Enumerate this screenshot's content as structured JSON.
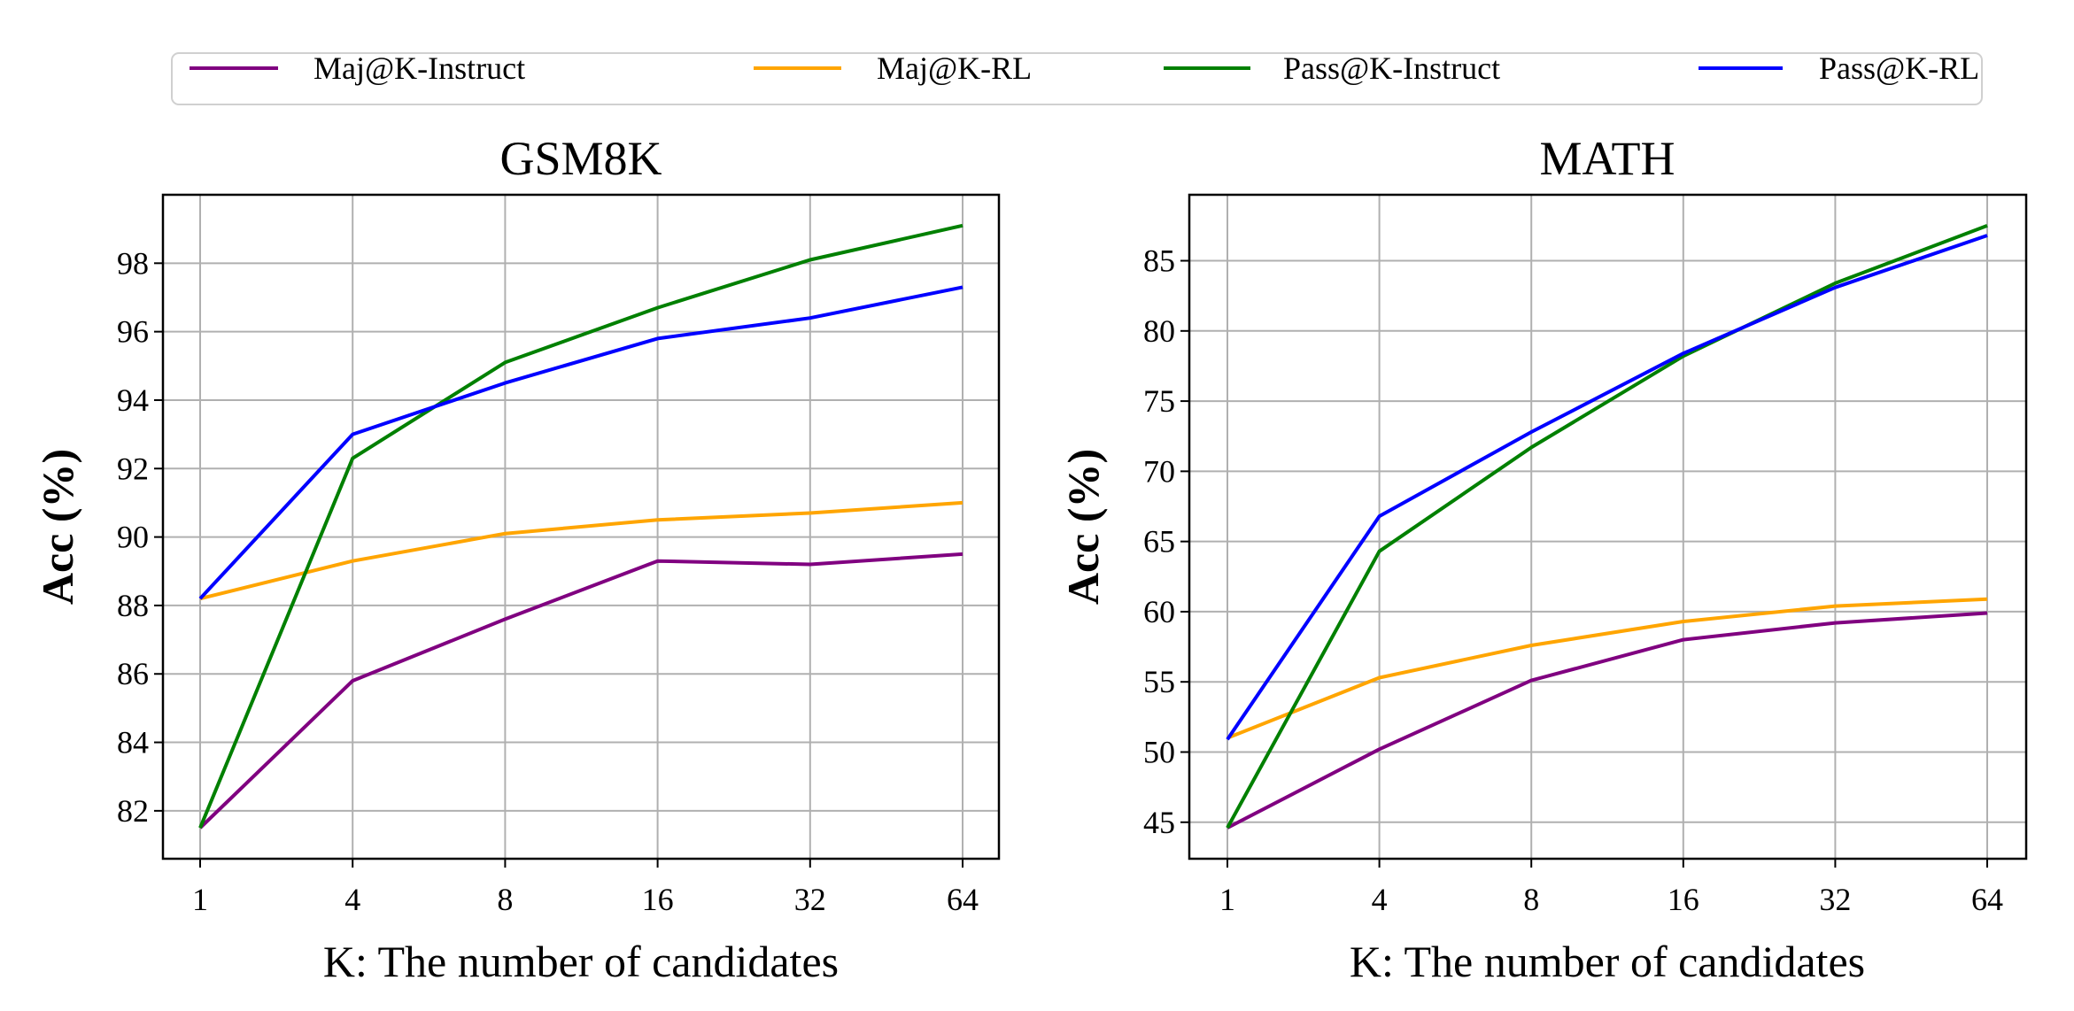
{
  "legend": {
    "placement": "top-center",
    "entries": [
      {
        "label": "Maj@K-Instruct",
        "color": "#800080"
      },
      {
        "label": "Maj@K-RL",
        "color": "#FFA500"
      },
      {
        "label": "Pass@K-Instruct",
        "color": "#008000"
      },
      {
        "label": "Pass@K-RL",
        "color": "#0000FF"
      }
    ]
  },
  "chart_data": [
    {
      "type": "line",
      "title": "GSM8K",
      "xlabel": "K: The number of candidates",
      "ylabel": "Acc (%)",
      "categories": [
        "1",
        "4",
        "8",
        "16",
        "32",
        "64"
      ],
      "yticks": [
        82,
        84,
        86,
        88,
        90,
        92,
        94,
        96,
        98
      ],
      "ylim": [
        80.6,
        100
      ],
      "grid": true,
      "series": [
        {
          "name": "Maj@K-Instruct",
          "color": "#800080",
          "values": [
            81.5,
            85.8,
            87.6,
            89.3,
            89.2,
            89.5
          ]
        },
        {
          "name": "Maj@K-RL",
          "color": "#FFA500",
          "values": [
            88.2,
            89.3,
            90.1,
            90.5,
            90.7,
            91.0
          ]
        },
        {
          "name": "Pass@K-Instruct",
          "color": "#008000",
          "values": [
            81.5,
            92.3,
            95.1,
            96.7,
            98.1,
            99.1
          ]
        },
        {
          "name": "Pass@K-RL",
          "color": "#0000FF",
          "values": [
            88.2,
            93.0,
            94.5,
            95.8,
            96.4,
            97.3
          ]
        }
      ]
    },
    {
      "type": "line",
      "title": "MATH",
      "xlabel": "K: The number of candidates",
      "ylabel": "Acc (%)",
      "categories": [
        "1",
        "4",
        "8",
        "16",
        "32",
        "64"
      ],
      "yticks": [
        45,
        50,
        55,
        60,
        65,
        70,
        75,
        80,
        85
      ],
      "ylim": [
        42.4,
        89.7
      ],
      "grid": true,
      "series": [
        {
          "name": "Maj@K-Instruct",
          "color": "#800080",
          "values": [
            44.6,
            50.2,
            55.1,
            58.0,
            59.2,
            59.9
          ]
        },
        {
          "name": "Maj@K-RL",
          "color": "#FFA500",
          "values": [
            51.0,
            55.3,
            57.6,
            59.3,
            60.4,
            60.9
          ]
        },
        {
          "name": "Pass@K-Instruct",
          "color": "#008000",
          "values": [
            44.6,
            64.3,
            71.7,
            78.2,
            83.4,
            87.5
          ]
        },
        {
          "name": "Pass@K-RL",
          "color": "#0000FF",
          "values": [
            50.9,
            66.8,
            72.8,
            78.4,
            83.1,
            86.8
          ]
        }
      ]
    }
  ]
}
